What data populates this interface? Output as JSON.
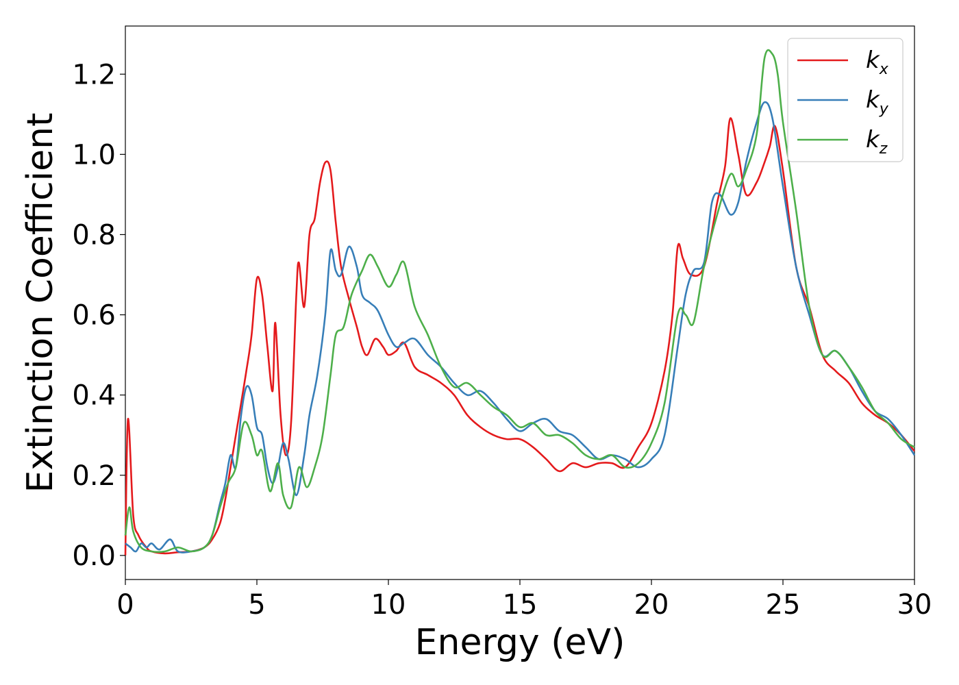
{
  "chart_data": {
    "type": "line",
    "xlabel": "Energy (eV)",
    "ylabel": "Extinction Coefficient",
    "xlim": [
      0,
      30
    ],
    "ylim": [
      -0.06,
      1.32
    ],
    "xticks": [
      0,
      5,
      10,
      15,
      20,
      25,
      30
    ],
    "xtick_labels": [
      "0",
      "5",
      "10",
      "15",
      "20",
      "25",
      "30"
    ],
    "yticks": [
      0.0,
      0.2,
      0.4,
      0.6,
      0.8,
      1.0,
      1.2
    ],
    "ytick_labels": [
      "0.0",
      "0.2",
      "0.4",
      "0.6",
      "0.8",
      "1.0",
      "1.2"
    ],
    "grid": false,
    "legend_position": "top-right",
    "series": [
      {
        "name": "kx",
        "base": "k",
        "sub": "x",
        "color": "#e41a1c",
        "x": [
          0,
          0.1,
          0.3,
          0.5,
          0.8,
          1.0,
          1.5,
          2.0,
          2.5,
          3.0,
          3.3,
          3.6,
          3.8,
          4.0,
          4.2,
          4.4,
          4.6,
          4.8,
          5.0,
          5.2,
          5.4,
          5.6,
          5.7,
          5.9,
          6.1,
          6.3,
          6.5,
          6.6,
          6.8,
          7.0,
          7.2,
          7.4,
          7.6,
          7.8,
          8.0,
          8.2,
          8.5,
          8.8,
          9.0,
          9.2,
          9.5,
          9.8,
          10.0,
          10.3,
          10.6,
          11.0,
          11.5,
          12.0,
          12.5,
          13.0,
          13.5,
          14.0,
          14.5,
          15.0,
          15.5,
          16.0,
          16.5,
          17.0,
          17.5,
          18.0,
          18.5,
          19.0,
          19.5,
          20.0,
          20.5,
          20.8,
          21.0,
          21.2,
          21.5,
          22.0,
          22.5,
          22.8,
          23.0,
          23.3,
          23.6,
          24.0,
          24.3,
          24.5,
          24.7,
          25.0,
          25.5,
          26.0,
          26.5,
          27.0,
          27.5,
          28.0,
          28.5,
          29.0,
          29.5,
          30.0
        ],
        "y": [
          0.0,
          0.34,
          0.1,
          0.05,
          0.02,
          0.01,
          0.005,
          0.008,
          0.01,
          0.02,
          0.04,
          0.08,
          0.14,
          0.22,
          0.3,
          0.38,
          0.46,
          0.55,
          0.69,
          0.65,
          0.52,
          0.41,
          0.58,
          0.35,
          0.25,
          0.33,
          0.65,
          0.73,
          0.62,
          0.8,
          0.84,
          0.93,
          0.98,
          0.96,
          0.83,
          0.72,
          0.64,
          0.57,
          0.52,
          0.5,
          0.54,
          0.52,
          0.5,
          0.51,
          0.53,
          0.47,
          0.45,
          0.43,
          0.4,
          0.35,
          0.32,
          0.3,
          0.29,
          0.29,
          0.27,
          0.24,
          0.21,
          0.23,
          0.22,
          0.23,
          0.23,
          0.22,
          0.27,
          0.33,
          0.46,
          0.6,
          0.77,
          0.74,
          0.7,
          0.72,
          0.88,
          0.97,
          1.09,
          1.0,
          0.9,
          0.93,
          0.98,
          1.02,
          1.07,
          0.96,
          0.72,
          0.62,
          0.5,
          0.46,
          0.43,
          0.38,
          0.35,
          0.33,
          0.3,
          0.26
        ]
      },
      {
        "name": "ky",
        "base": "k",
        "sub": "y",
        "color": "#377eb8",
        "x": [
          0,
          0.2,
          0.4,
          0.6,
          0.8,
          1.0,
          1.3,
          1.7,
          2.0,
          2.5,
          3.0,
          3.3,
          3.6,
          3.8,
          4.0,
          4.2,
          4.4,
          4.6,
          4.8,
          5.0,
          5.2,
          5.4,
          5.6,
          5.8,
          6.0,
          6.2,
          6.5,
          6.8,
          7.0,
          7.3,
          7.6,
          7.8,
          8.0,
          8.2,
          8.5,
          8.8,
          9.0,
          9.3,
          9.6,
          10.0,
          10.3,
          10.6,
          11.0,
          11.5,
          12.0,
          12.5,
          13.0,
          13.5,
          14.0,
          14.5,
          15.0,
          15.5,
          16.0,
          16.5,
          17.0,
          17.5,
          18.0,
          18.5,
          19.0,
          19.5,
          20.0,
          20.5,
          21.0,
          21.3,
          21.6,
          22.0,
          22.3,
          22.6,
          23.0,
          23.3,
          23.6,
          24.0,
          24.3,
          24.6,
          25.0,
          25.5,
          26.0,
          26.5,
          27.0,
          27.5,
          28.0,
          28.5,
          29.0,
          29.5,
          30.0
        ],
        "y": [
          0.03,
          0.02,
          0.01,
          0.03,
          0.02,
          0.03,
          0.015,
          0.04,
          0.01,
          0.01,
          0.02,
          0.05,
          0.13,
          0.18,
          0.25,
          0.22,
          0.35,
          0.42,
          0.4,
          0.32,
          0.3,
          0.22,
          0.18,
          0.22,
          0.28,
          0.24,
          0.15,
          0.25,
          0.35,
          0.45,
          0.6,
          0.76,
          0.71,
          0.7,
          0.77,
          0.72,
          0.65,
          0.63,
          0.61,
          0.55,
          0.52,
          0.53,
          0.54,
          0.5,
          0.47,
          0.43,
          0.4,
          0.41,
          0.38,
          0.34,
          0.31,
          0.33,
          0.34,
          0.31,
          0.3,
          0.27,
          0.24,
          0.25,
          0.24,
          0.22,
          0.24,
          0.3,
          0.52,
          0.65,
          0.71,
          0.73,
          0.88,
          0.9,
          0.85,
          0.88,
          0.98,
          1.08,
          1.13,
          1.09,
          0.92,
          0.72,
          0.6,
          0.5,
          0.51,
          0.47,
          0.41,
          0.36,
          0.34,
          0.3,
          0.25
        ]
      },
      {
        "name": "kz",
        "base": "k",
        "sub": "z",
        "color": "#4daf4a",
        "x": [
          0,
          0.15,
          0.3,
          0.6,
          1.0,
          1.5,
          2.0,
          2.5,
          3.0,
          3.3,
          3.6,
          3.9,
          4.2,
          4.5,
          4.8,
          5.0,
          5.2,
          5.5,
          5.8,
          6.0,
          6.3,
          6.6,
          6.9,
          7.2,
          7.5,
          7.8,
          8.0,
          8.3,
          8.6,
          9.0,
          9.3,
          9.6,
          10.0,
          10.3,
          10.6,
          11.0,
          11.5,
          12.0,
          12.5,
          13.0,
          13.5,
          14.0,
          14.5,
          15.0,
          15.5,
          16.0,
          16.5,
          17.0,
          17.5,
          18.0,
          18.5,
          19.0,
          19.5,
          20.0,
          20.5,
          21.0,
          21.3,
          21.6,
          22.0,
          22.5,
          23.0,
          23.3,
          23.6,
          24.0,
          24.3,
          24.6,
          24.8,
          25.0,
          25.5,
          26.0,
          26.5,
          27.0,
          27.5,
          28.0,
          28.5,
          29.0,
          29.5,
          30.0
        ],
        "y": [
          0.05,
          0.12,
          0.06,
          0.02,
          0.01,
          0.01,
          0.02,
          0.01,
          0.02,
          0.05,
          0.12,
          0.18,
          0.22,
          0.33,
          0.3,
          0.25,
          0.26,
          0.16,
          0.23,
          0.15,
          0.12,
          0.22,
          0.17,
          0.22,
          0.3,
          0.45,
          0.55,
          0.57,
          0.65,
          0.71,
          0.75,
          0.72,
          0.67,
          0.7,
          0.73,
          0.62,
          0.55,
          0.47,
          0.42,
          0.43,
          0.4,
          0.37,
          0.35,
          0.32,
          0.33,
          0.3,
          0.3,
          0.28,
          0.25,
          0.24,
          0.25,
          0.22,
          0.23,
          0.28,
          0.38,
          0.6,
          0.6,
          0.58,
          0.72,
          0.85,
          0.95,
          0.92,
          0.96,
          1.05,
          1.24,
          1.25,
          1.2,
          1.08,
          0.86,
          0.62,
          0.5,
          0.51,
          0.47,
          0.42,
          0.36,
          0.33,
          0.29,
          0.27
        ]
      }
    ]
  }
}
